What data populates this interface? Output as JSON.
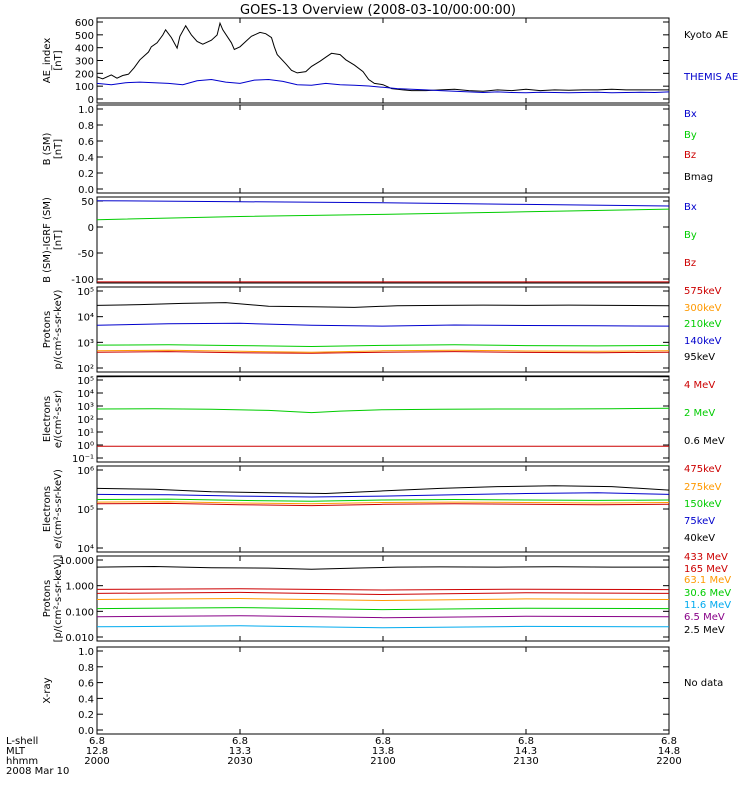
{
  "title": "GOES-13 Overview (2008-03-10/00:00:00)",
  "colors": {
    "black": "#000000",
    "blue": "#0000cc",
    "green": "#00cc00",
    "red": "#cc0000",
    "orange": "#ff9900",
    "cyan": "#00aaee",
    "purple": "#880088"
  },
  "chart_data": [
    {
      "type": "line",
      "panel": "ae",
      "ylabel": [
        "AE_index",
        "[nT]"
      ],
      "yticks": [
        "600",
        "500",
        "400",
        "300",
        "200",
        "100",
        "0"
      ],
      "ylim": [
        0,
        650
      ],
      "log": false,
      "series": [
        {
          "name": "Kyoto AE",
          "color": "black",
          "x": [
            2000,
            2002,
            2005,
            2007,
            2009,
            2011,
            2013,
            2015,
            2018,
            2019,
            2021,
            2023,
            2024,
            2026,
            2028,
            2029,
            2031,
            2033,
            2035,
            2037,
            2040,
            2042,
            2043,
            2044,
            2047,
            2048,
            2050,
            2052,
            2054,
            2057,
            2059,
            2061,
            2062,
            2063,
            2066,
            2068,
            2070,
            2073,
            2075,
            2078,
            2080,
            2082,
            2085,
            2087,
            2090,
            2093,
            2095,
            2097,
            2100,
            2103,
            2107,
            2110,
            2115,
            2120,
            2125,
            2130,
            2135,
            2140,
            2145,
            2150,
            2155,
            2160,
            2165,
            2170,
            2175,
            2180,
            2185,
            2190,
            2195,
            2200
          ],
          "y": [
            200,
            185,
            215,
            190,
            210,
            220,
            270,
            330,
            390,
            430,
            460,
            520,
            560,
            500,
            420,
            510,
            590,
            520,
            470,
            450,
            480,
            520,
            610,
            560,
            460,
            410,
            430,
            470,
            510,
            540,
            530,
            500,
            430,
            370,
            300,
            250,
            230,
            240,
            280,
            320,
            350,
            380,
            370,
            330,
            290,
            240,
            180,
            150,
            140,
            110,
            100,
            95,
            95,
            100,
            105,
            95,
            90,
            100,
            95,
            105,
            95,
            100,
            98,
            100,
            100,
            105,
            100,
            100,
            100,
            100
          ]
        },
        {
          "name": "THEMIS AE",
          "color": "blue",
          "x": [
            2000,
            2005,
            2010,
            2015,
            2020,
            2025,
            2030,
            2035,
            2040,
            2045,
            2050,
            2055,
            2060,
            2065,
            2070,
            2075,
            2080,
            2085,
            2090,
            2095,
            2100,
            2105,
            2110,
            2115,
            2120,
            2125,
            2130,
            2135,
            2140,
            2145,
            2150,
            2155,
            2160,
            2165,
            2170,
            2175,
            2180,
            2185,
            2190,
            2195,
            2200
          ],
          "y": [
            150,
            140,
            155,
            160,
            155,
            150,
            140,
            170,
            180,
            160,
            150,
            175,
            180,
            165,
            140,
            135,
            150,
            140,
            135,
            130,
            120,
            110,
            105,
            100,
            95,
            90,
            85,
            80,
            85,
            80,
            78,
            82,
            80,
            78,
            80,
            82,
            78,
            80,
            82,
            80,
            85
          ]
        }
      ]
    },
    {
      "type": "line",
      "panel": "bsm",
      "ylabel": [
        "B (SM)",
        "[nT]"
      ],
      "yticks": [
        "1.0",
        "0.8",
        "0.6",
        "0.4",
        "0.2",
        "0.0"
      ],
      "ylim": [
        0,
        1
      ],
      "log": false,
      "series": [
        {
          "name": "Bx",
          "color": "blue",
          "x": [],
          "y": []
        },
        {
          "name": "By",
          "color": "green",
          "x": [],
          "y": []
        },
        {
          "name": "Bz",
          "color": "red",
          "x": [],
          "y": []
        },
        {
          "name": "Bmag",
          "color": "black",
          "x": [],
          "y": []
        }
      ]
    },
    {
      "type": "line",
      "panel": "bigrf",
      "ylabel": [
        "B (SM)-IGRF (SM)",
        "[nT]"
      ],
      "yticks": [
        "50",
        "0",
        "-50",
        "-100"
      ],
      "ylim": [
        -108,
        55
      ],
      "log": false,
      "series": [
        {
          "name": "Bx",
          "color": "blue",
          "x": [
            2000,
            2050,
            2100,
            2150,
            2200
          ],
          "y": [
            48,
            46,
            44,
            41,
            38
          ]
        },
        {
          "name": "By",
          "color": "green",
          "x": [
            2000,
            2050,
            2100,
            2150,
            2200
          ],
          "y": [
            12,
            18,
            22,
            27,
            32
          ]
        },
        {
          "name": "Bz",
          "color": "red",
          "x": [
            2000,
            2200
          ],
          "y": [
            -106,
            -106
          ]
        }
      ]
    },
    {
      "type": "line",
      "panel": "protons1",
      "ylabel": [
        "Protons",
        "p/(cm²-s-sr-keV)"
      ],
      "yticks": [
        "10⁵",
        "10⁴",
        "10³",
        "10²"
      ],
      "ylim": [
        2,
        5
      ],
      "log": true,
      "series": [
        {
          "name": "575keV",
          "color": "red",
          "x": [
            2000,
            2025,
            2050,
            2075,
            2100,
            2125,
            2150,
            2175,
            2200
          ],
          "y": [
            2.7,
            2.72,
            2.68,
            2.66,
            2.7,
            2.72,
            2.69,
            2.68,
            2.7
          ]
        },
        {
          "name": "300keV",
          "color": "orange",
          "x": [
            2000,
            2025,
            2050,
            2075,
            2100,
            2125,
            2150,
            2175,
            2200
          ],
          "y": [
            2.75,
            2.77,
            2.73,
            2.7,
            2.75,
            2.77,
            2.74,
            2.73,
            2.75
          ]
        },
        {
          "name": "210keV",
          "color": "green",
          "x": [
            2000,
            2025,
            2050,
            2075,
            2100,
            2125,
            2150,
            2175,
            2200
          ],
          "y": [
            2.95,
            2.96,
            2.93,
            2.9,
            2.94,
            2.96,
            2.93,
            2.92,
            2.94
          ]
        },
        {
          "name": "140keV",
          "color": "blue",
          "x": [
            2000,
            2025,
            2050,
            2075,
            2100,
            2125,
            2150,
            2175,
            2200
          ],
          "y": [
            3.65,
            3.7,
            3.72,
            3.65,
            3.62,
            3.66,
            3.64,
            3.63,
            3.62
          ]
        },
        {
          "name": "95keV",
          "color": "black",
          "x": [
            2000,
            2015,
            2030,
            2045,
            2060,
            2075,
            2090,
            2105,
            2120,
            2135,
            2150,
            2165,
            2180,
            2200
          ],
          "y": [
            4.35,
            4.38,
            4.42,
            4.45,
            4.32,
            4.3,
            4.28,
            4.34,
            4.35,
            4.36,
            4.35,
            4.36,
            4.35,
            4.34
          ]
        }
      ]
    },
    {
      "type": "line",
      "panel": "electrons1",
      "ylabel": [
        "Electrons",
        "e/(cm²-s-sr)"
      ],
      "yticks": [
        "10⁵",
        "10⁴",
        "10³",
        "10²",
        "10¹",
        "10⁰",
        "10⁻¹"
      ],
      "ylim": [
        -1,
        5
      ],
      "log": true,
      "series": [
        {
          "name": "4 MeV",
          "color": "red",
          "x": [
            2000,
            2020,
            2040,
            2060,
            2080,
            2100,
            2120,
            2140,
            2160,
            2180,
            2200
          ],
          "y": [
            0.1,
            0.1,
            0.1,
            0.1,
            0.1,
            0.1,
            0.1,
            0.1,
            0.1,
            0.1,
            0.1
          ]
        },
        {
          "name": "2 MeV",
          "color": "green",
          "x": [
            2000,
            2020,
            2040,
            2060,
            2075,
            2085,
            2100,
            2120,
            2140,
            2160,
            2180,
            2200
          ],
          "y": [
            2.7,
            2.72,
            2.68,
            2.6,
            2.45,
            2.55,
            2.65,
            2.68,
            2.7,
            2.7,
            2.72,
            2.75
          ]
        },
        {
          "name": "0.6 MeV",
          "color": "black",
          "x": [
            2000,
            2050,
            2100,
            2150,
            2200
          ],
          "y": [
            4.95,
            4.96,
            4.95,
            4.96,
            4.95
          ]
        }
      ]
    },
    {
      "type": "line",
      "panel": "electrons2",
      "ylabel": [
        "Electrons",
        "e/(cm²-s-sr-keV)"
      ],
      "yticks": [
        "10⁶",
        "10⁵",
        "10⁴"
      ],
      "ylim": [
        4,
        6
      ],
      "log": true,
      "series": [
        {
          "name": "475keV",
          "color": "red",
          "x": [
            2000,
            2025,
            2050,
            2075,
            2100,
            2125,
            2150,
            2175,
            2200
          ],
          "y": [
            5.12,
            5.13,
            5.1,
            5.08,
            5.11,
            5.12,
            5.11,
            5.1,
            5.11
          ]
        },
        {
          "name": "275keV",
          "color": "orange",
          "x": [
            2000,
            2025,
            2050,
            2075,
            2100,
            2125,
            2150,
            2175,
            2200
          ],
          "y": [
            5.16,
            5.17,
            5.14,
            5.12,
            5.15,
            5.16,
            5.15,
            5.14,
            5.15
          ]
        },
        {
          "name": "150keV",
          "color": "green",
          "x": [
            2000,
            2025,
            2050,
            2075,
            2100,
            2125,
            2150,
            2175,
            2200
          ],
          "y": [
            5.22,
            5.23,
            5.2,
            5.18,
            5.21,
            5.22,
            5.21,
            5.2,
            5.21
          ]
        },
        {
          "name": "75keV",
          "color": "blue",
          "x": [
            2000,
            2025,
            2050,
            2075,
            2100,
            2125,
            2150,
            2175,
            2200
          ],
          "y": [
            5.34,
            5.33,
            5.3,
            5.28,
            5.3,
            5.33,
            5.36,
            5.38,
            5.34
          ]
        },
        {
          "name": "40keV",
          "color": "black",
          "x": [
            2000,
            2020,
            2040,
            2060,
            2080,
            2100,
            2120,
            2140,
            2160,
            2180,
            2200
          ],
          "y": [
            5.48,
            5.46,
            5.4,
            5.38,
            5.36,
            5.42,
            5.48,
            5.52,
            5.54,
            5.52,
            5.44
          ]
        }
      ]
    },
    {
      "type": "line",
      "panel": "protons2",
      "ylabel": [
        "Protons",
        "[p/(cm²-s-sr-keV)]"
      ],
      "yticks": [
        "10.000",
        "1.000",
        "0.100",
        "0.010"
      ],
      "ylim": [
        -2.5,
        1.7
      ],
      "log": true,
      "series": [
        {
          "name": "433 MeV",
          "color": "red",
          "x": [
            2000,
            2050,
            2100,
            2150,
            2200
          ],
          "y": [
            0.05,
            0.08,
            0.02,
            0.06,
            0.04
          ]
        },
        {
          "name": "165 MeV",
          "color": "red",
          "x": [
            2000,
            2050,
            2100,
            2150,
            2200
          ],
          "y": [
            -0.15,
            -0.1,
            -0.2,
            -0.12,
            -0.15
          ]
        },
        {
          "name": "63.1 MeV",
          "color": "orange",
          "x": [
            2000,
            2050,
            2100,
            2150,
            2200
          ],
          "y": [
            -0.45,
            -0.4,
            -0.5,
            -0.42,
            -0.45
          ]
        },
        {
          "name": "30.6 MeV",
          "color": "green",
          "x": [
            2000,
            2050,
            2100,
            2150,
            2200
          ],
          "y": [
            -0.9,
            -0.85,
            -0.95,
            -0.88,
            -0.9
          ]
        },
        {
          "name": "11.6 MeV",
          "color": "cyan",
          "x": [
            2000,
            2050,
            2100,
            2150,
            2200
          ],
          "y": [
            -1.8,
            -1.75,
            -1.85,
            -1.78,
            -1.8
          ]
        },
        {
          "name": "6.5 MeV",
          "color": "purple",
          "x": [
            2000,
            2050,
            2100,
            2150,
            2200
          ],
          "y": [
            -1.3,
            -1.25,
            -1.35,
            -1.28,
            -1.3
          ]
        },
        {
          "name": "2.5 MeV",
          "color": "black",
          "x": [
            2000,
            2020,
            2040,
            2060,
            2075,
            2090,
            2105,
            2120,
            2140,
            2160,
            2180,
            2200
          ],
          "y": [
            1.15,
            1.18,
            1.12,
            1.1,
            1.05,
            1.1,
            1.15,
            1.16,
            1.15,
            1.17,
            1.15,
            1.15
          ]
        }
      ]
    },
    {
      "type": "line",
      "panel": "xray",
      "ylabel": [
        "X-ray",
        ""
      ],
      "yticks": [
        "1.0",
        "0.8",
        "0.6",
        "0.4",
        "0.2",
        "0.0"
      ],
      "ylim": [
        0,
        1
      ],
      "log": false,
      "note": "No data",
      "series": []
    }
  ],
  "xaxis": {
    "xlim": [
      2000,
      2200
    ],
    "row_labels": [
      "L-shell",
      "MLT",
      "hhmm",
      "2008 Mar 10"
    ],
    "ticks": [
      {
        "x": 2000,
        "lshell": "6.8",
        "mlt": "12.8",
        "hhmm": "2000"
      },
      {
        "x": 2050,
        "lshell": "6.8",
        "mlt": "13.3",
        "hhmm": "2030"
      },
      {
        "x": 2100,
        "lshell": "6.8",
        "mlt": "13.8",
        "hhmm": "2100"
      },
      {
        "x": 2150,
        "lshell": "6.8",
        "mlt": "14.3",
        "hhmm": "2130"
      },
      {
        "x": 2200,
        "lshell": "6.8",
        "mlt": "14.8",
        "hhmm": "2200"
      }
    ]
  }
}
